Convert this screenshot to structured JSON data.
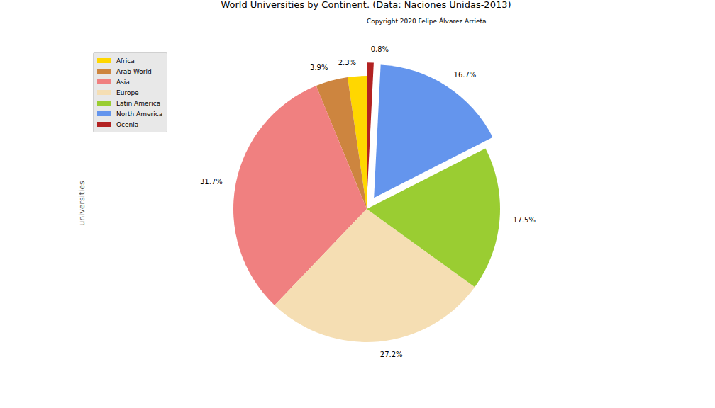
{
  "chart_data": {
    "type": "pie",
    "title": "World Universities by Continent. (Data: Naciones Unidas-2013)",
    "subtitle": "Copyright 2020 Felipe Álvarez Arrieta",
    "y_label": "universities",
    "categories": [
      "Africa",
      "Arab World",
      "Asia",
      "Europe",
      "Latin America",
      "North America",
      "Ocenia"
    ],
    "values": [
      2.3,
      3.9,
      31.7,
      27.2,
      17.5,
      16.7,
      0.8
    ],
    "value_labels": [
      "2.3%",
      "3.9%",
      "31.7%",
      "27.2%",
      "17.5%",
      "16.7%",
      "0.8%"
    ],
    "colors": [
      "#FFD700",
      "#CD853F",
      "#F08080",
      "#F5DEB3",
      "#9ACD32",
      "#6495ED",
      "#B22222"
    ],
    "legend": "upper left",
    "data_labels": true
  }
}
